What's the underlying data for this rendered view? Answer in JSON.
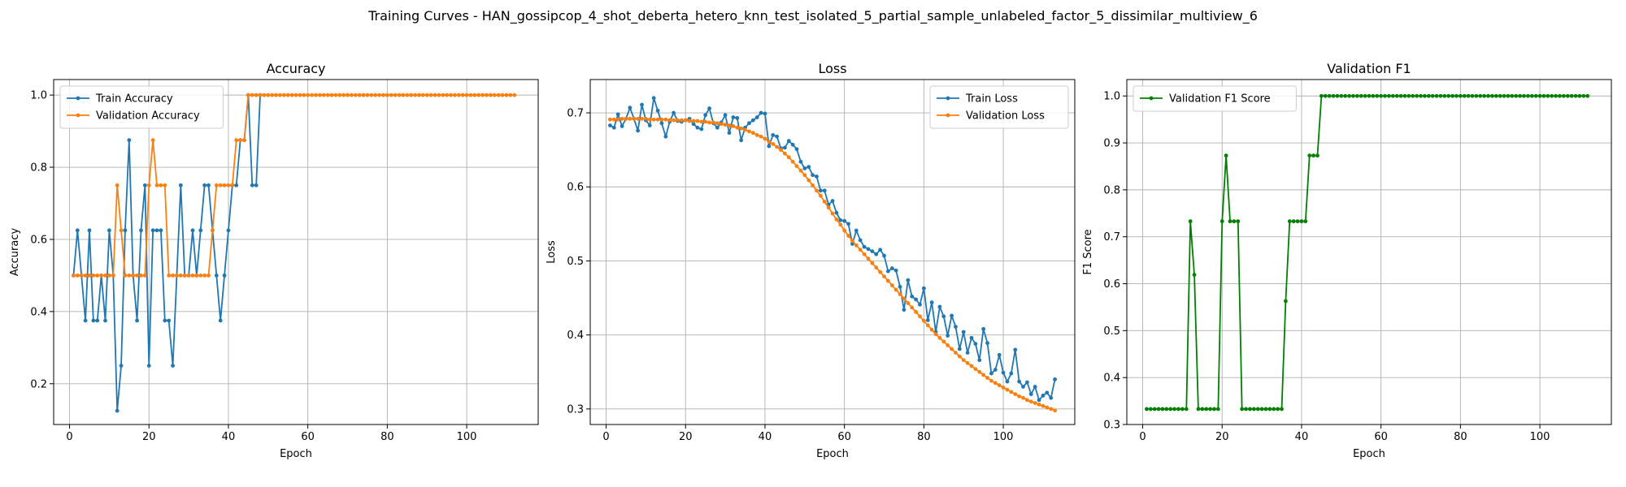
{
  "figure": {
    "suptitle": "Training Curves - HAN_gossipcop_4_shot_deberta_hetero_knn_test_isolated_5_partial_sample_unlabeled_factor_5_dissimilar_multiview_6"
  },
  "colors": {
    "blue": "#1f77b4",
    "orange": "#ff7f0e",
    "green": "#008000",
    "grid": "#b0b0b0"
  },
  "chart_data": [
    {
      "type": "line",
      "title": "Accuracy",
      "xlabel": "Epoch",
      "ylabel": "Accuracy",
      "xlim": [
        -4,
        118
      ],
      "ylim": [
        0.087,
        1.043
      ],
      "xticks": [
        0,
        20,
        40,
        60,
        80,
        100
      ],
      "yticks": [
        0.2,
        0.4,
        0.6,
        0.8,
        1.0
      ],
      "ytick_labels": [
        "0.2",
        "0.4",
        "0.6",
        "0.8",
        "1.0"
      ],
      "grid": true,
      "legend": "upper left",
      "series": [
        {
          "name": "Train Accuracy",
          "color": "#1f77b4",
          "x": [
            1,
            2,
            3,
            4,
            5,
            6,
            7,
            8,
            9,
            10,
            11,
            12,
            13,
            14,
            15,
            16,
            17,
            18,
            19,
            20,
            21,
            22,
            23,
            24,
            25,
            26,
            27,
            28,
            29,
            30,
            31,
            32,
            33,
            34,
            35,
            36,
            37,
            38,
            39,
            40,
            41,
            42,
            43,
            44,
            45,
            46,
            47,
            48
          ],
          "y": [
            0.5,
            0.625,
            0.5,
            0.375,
            0.625,
            0.375,
            0.375,
            0.5,
            0.375,
            0.625,
            0.5,
            0.125,
            0.25,
            0.625,
            0.875,
            0.5,
            0.375,
            0.625,
            0.75,
            0.25,
            0.625,
            0.625,
            0.625,
            0.375,
            0.375,
            0.25,
            0.5,
            0.75,
            0.5,
            0.5,
            0.625,
            0.5,
            0.625,
            0.75,
            0.75,
            0.625,
            0.5,
            0.375,
            0.5,
            0.625,
            0.75,
            0.75,
            0.875,
            0.875,
            1.0,
            0.75,
            0.75,
            1.0
          ]
        },
        {
          "name": "Validation Accuracy",
          "color": "#ff7f0e",
          "x_start": 1,
          "y": [
            0.5,
            0.5,
            0.5,
            0.5,
            0.5,
            0.5,
            0.5,
            0.5,
            0.5,
            0.5,
            0.5,
            0.75,
            0.625,
            0.5,
            0.5,
            0.5,
            0.5,
            0.5,
            0.5,
            0.75,
            0.875,
            0.75,
            0.75,
            0.75,
            0.5,
            0.5,
            0.5,
            0.5,
            0.5,
            0.5,
            0.5,
            0.5,
            0.5,
            0.5,
            0.5,
            0.625,
            0.75,
            0.75,
            0.75,
            0.75,
            0.75,
            0.875,
            0.875,
            0.875,
            1.0
          ],
          "fill_value": 1.0,
          "fill_to": 112
        }
      ]
    },
    {
      "type": "line",
      "title": "Loss",
      "xlabel": "Epoch",
      "ylabel": "Loss",
      "xlim": [
        -4,
        118
      ],
      "ylim": [
        0.279,
        0.745
      ],
      "xticks": [
        0,
        20,
        40,
        60,
        80,
        100
      ],
      "yticks": [
        0.3,
        0.4,
        0.5,
        0.6,
        0.7
      ],
      "ytick_labels": [
        "0.3",
        "0.4",
        "0.5",
        "0.6",
        "0.7"
      ],
      "grid": true,
      "legend": "upper right",
      "series": [
        {
          "name": "Train Loss",
          "color": "#1f77b4",
          "x_start": 1,
          "y": [
            0.683,
            0.68,
            0.698,
            0.682,
            0.692,
            0.707,
            0.692,
            0.676,
            0.711,
            0.69,
            0.683,
            0.72,
            0.703,
            0.686,
            0.668,
            0.688,
            0.7,
            0.689,
            0.688,
            0.69,
            0.692,
            0.685,
            0.68,
            0.678,
            0.697,
            0.706,
            0.686,
            0.68,
            0.687,
            0.697,
            0.673,
            0.694,
            0.693,
            0.663,
            0.68,
            0.686,
            0.69,
            0.694,
            0.7,
            0.699,
            0.655,
            0.67,
            0.668,
            0.652,
            0.653,
            0.662,
            0.657,
            0.651,
            0.634,
            0.625,
            0.627,
            0.616,
            0.614,
            0.595,
            0.595,
            0.576,
            0.581,
            0.565,
            0.555,
            0.554,
            0.55,
            0.523,
            0.541,
            0.528,
            0.519,
            0.516,
            0.513,
            0.509,
            0.515,
            0.507,
            0.486,
            0.49,
            0.487,
            0.465,
            0.434,
            0.474,
            0.452,
            0.448,
            0.441,
            0.463,
            0.42,
            0.444,
            0.404,
            0.438,
            0.425,
            0.399,
            0.426,
            0.411,
            0.381,
            0.404,
            0.376,
            0.396,
            0.388,
            0.366,
            0.408,
            0.389,
            0.348,
            0.353,
            0.373,
            0.349,
            0.337,
            0.348,
            0.38,
            0.337,
            0.33,
            0.336,
            0.32,
            0.33,
            0.312,
            0.318,
            0.322,
            0.315,
            0.34
          ]
        },
        {
          "name": "Validation Loss",
          "color": "#ff7f0e",
          "x_start": 1,
          "y": [
            0.691,
            0.691,
            0.691,
            0.692,
            0.692,
            0.692,
            0.692,
            0.692,
            0.692,
            0.692,
            0.691,
            0.691,
            0.691,
            0.691,
            0.691,
            0.69,
            0.69,
            0.69,
            0.69,
            0.69,
            0.689,
            0.689,
            0.689,
            0.688,
            0.688,
            0.687,
            0.687,
            0.686,
            0.685,
            0.684,
            0.683,
            0.682,
            0.68,
            0.679,
            0.677,
            0.675,
            0.673,
            0.67,
            0.668,
            0.665,
            0.661,
            0.658,
            0.654,
            0.65,
            0.645,
            0.64,
            0.634,
            0.628,
            0.622,
            0.616,
            0.609,
            0.602,
            0.595,
            0.588,
            0.58,
            0.572,
            0.564,
            0.556,
            0.549,
            0.541,
            0.534,
            0.527,
            0.521,
            0.515,
            0.509,
            0.503,
            0.497,
            0.491,
            0.485,
            0.479,
            0.473,
            0.467,
            0.461,
            0.455,
            0.449,
            0.443,
            0.437,
            0.431,
            0.425,
            0.419,
            0.413,
            0.407,
            0.401,
            0.396,
            0.391,
            0.386,
            0.381,
            0.376,
            0.371,
            0.366,
            0.362,
            0.358,
            0.354,
            0.35,
            0.346,
            0.342,
            0.338,
            0.335,
            0.332,
            0.329,
            0.326,
            0.323,
            0.32,
            0.317,
            0.315,
            0.312,
            0.31,
            0.308,
            0.306,
            0.304,
            0.302,
            0.3,
            0.298
          ]
        }
      ]
    },
    {
      "type": "line",
      "title": "Validation F1",
      "xlabel": "Epoch",
      "ylabel": "F1 Score",
      "xlim": [
        -4,
        118
      ],
      "ylim": [
        0.3,
        1.035
      ],
      "xticks": [
        0,
        20,
        40,
        60,
        80,
        100
      ],
      "yticks": [
        0.3,
        0.4,
        0.5,
        0.6,
        0.7,
        0.8,
        0.9,
        1.0
      ],
      "ytick_labels": [
        "0.3",
        "0.4",
        "0.5",
        "0.6",
        "0.7",
        "0.8",
        "0.9",
        "1.0"
      ],
      "grid": true,
      "legend": "upper left",
      "series": [
        {
          "name": "Validation F1 Score",
          "color": "#008000",
          "x_start": 1,
          "y": [
            0.333,
            0.333,
            0.333,
            0.333,
            0.333,
            0.333,
            0.333,
            0.333,
            0.333,
            0.333,
            0.333,
            0.733,
            0.619,
            0.333,
            0.333,
            0.333,
            0.333,
            0.333,
            0.333,
            0.733,
            0.873,
            0.733,
            0.733,
            0.733,
            0.333,
            0.333,
            0.333,
            0.333,
            0.333,
            0.333,
            0.333,
            0.333,
            0.333,
            0.333,
            0.333,
            0.563,
            0.733,
            0.733,
            0.733,
            0.733,
            0.733,
            0.873,
            0.873,
            0.873,
            1.0
          ],
          "fill_value": 1.0,
          "fill_to": 112
        }
      ]
    }
  ]
}
